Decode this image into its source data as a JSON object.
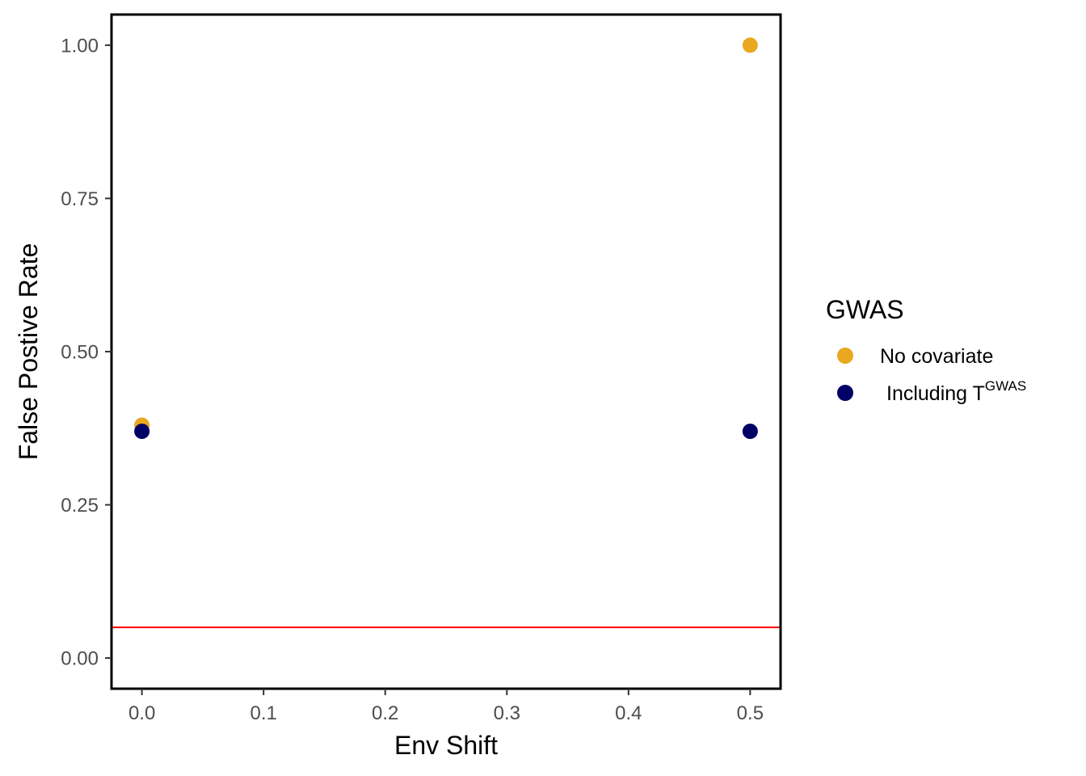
{
  "chart_data": {
    "type": "scatter",
    "title": "",
    "xlabel": "Env Shift",
    "ylabel": "False Postive Rate",
    "xlim": [
      -0.025,
      0.525
    ],
    "ylim": [
      -0.05,
      1.05
    ],
    "x_ticks": [
      0.0,
      0.1,
      0.2,
      0.3,
      0.4,
      0.5
    ],
    "x_tick_labels": [
      "0.0",
      "0.1",
      "0.2",
      "0.3",
      "0.4",
      "0.5"
    ],
    "y_ticks": [
      0.0,
      0.25,
      0.5,
      0.75,
      1.0
    ],
    "y_tick_labels": [
      "0.00",
      "0.25",
      "0.50",
      "0.75",
      "1.00"
    ],
    "grid": false,
    "reference_line": {
      "y": 0.05,
      "color": "#ff0000"
    },
    "legend": {
      "title": "GWAS",
      "placement": "right"
    },
    "series": [
      {
        "name": "No covariate",
        "color": "#E9A820",
        "points": [
          {
            "x": 0.0,
            "y": 0.38
          },
          {
            "x": 0.5,
            "y": 1.0
          }
        ]
      },
      {
        "name": "Including T",
        "name_superscript": "GWAS",
        "color": "#000066",
        "points": [
          {
            "x": 0.0,
            "y": 0.37
          },
          {
            "x": 0.5,
            "y": 0.37
          }
        ]
      }
    ]
  }
}
